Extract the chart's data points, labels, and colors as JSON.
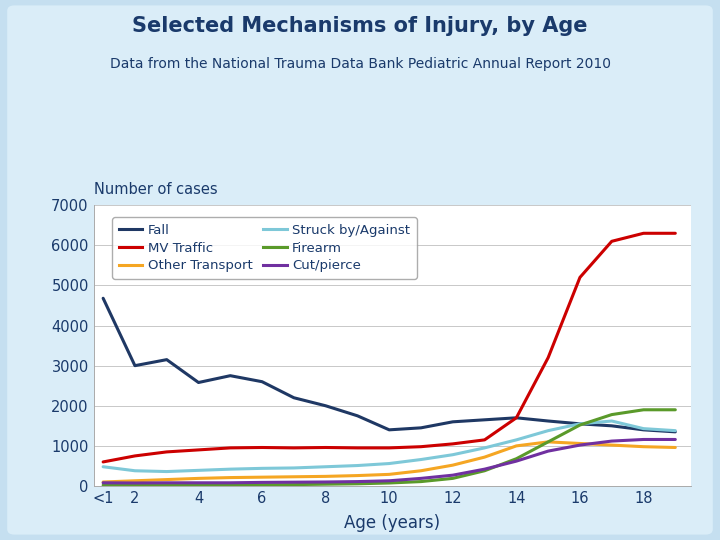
{
  "title": "Selected Mechanisms of Injury, by Age",
  "subtitle": "Data from the National Trauma Data Bank Pediatric Annual Report 2010",
  "ylabel": "Number of cases",
  "xlabel": "Age (years)",
  "outer_bg": "#c5dff0",
  "inner_bg": "#e8f4fb",
  "plot_bg": "#ffffff",
  "title_color": "#1a3a6b",
  "label_color": "#1a3a6b",
  "age_x": [
    0,
    1,
    2,
    3,
    4,
    5,
    6,
    7,
    8,
    9,
    10,
    11,
    12,
    13,
    14,
    15,
    16,
    17,
    18
  ],
  "xtick_labels": [
    "<1",
    "2",
    "4",
    "6",
    "8",
    "10",
    "12",
    "14",
    "16",
    "18"
  ],
  "xtick_positions": [
    0,
    1,
    3,
    5,
    7,
    9,
    11,
    13,
    15,
    17
  ],
  "ylim": [
    0,
    7000
  ],
  "yticks": [
    0,
    1000,
    2000,
    3000,
    4000,
    5000,
    6000,
    7000
  ],
  "series_order": [
    "Fall",
    "MV Traffic",
    "Other Transport",
    "Struck by/Against",
    "Firearm",
    "Cut/pierce"
  ],
  "legend_order": [
    "Fall",
    "MV Traffic",
    "Other Transport",
    "Struck by/Against",
    "Firearm",
    "Cut/pierce"
  ],
  "series": {
    "Fall": {
      "color": "#1f3864",
      "values": [
        4680,
        3000,
        3150,
        2580,
        2750,
        2600,
        2200,
        2000,
        1750,
        1400,
        1450,
        1600,
        1650,
        1700,
        1620,
        1550,
        1500,
        1400,
        1350
      ]
    },
    "MV Traffic": {
      "color": "#cc0000",
      "values": [
        600,
        750,
        850,
        900,
        950,
        960,
        950,
        960,
        950,
        950,
        980,
        1050,
        1150,
        1700,
        3200,
        5200,
        6100,
        6300,
        6300
      ]
    },
    "Other Transport": {
      "color": "#f5a623",
      "values": [
        100,
        130,
        160,
        190,
        210,
        220,
        230,
        240,
        260,
        290,
        380,
        520,
        720,
        1000,
        1100,
        1060,
        1020,
        980,
        960
      ]
    },
    "Struck by/Against": {
      "color": "#7ec8d8",
      "values": [
        480,
        380,
        360,
        390,
        420,
        440,
        450,
        480,
        510,
        560,
        660,
        780,
        950,
        1150,
        1380,
        1550,
        1620,
        1430,
        1380
      ]
    },
    "Firearm": {
      "color": "#5a9a2a",
      "values": [
        20,
        20,
        20,
        20,
        25,
        30,
        35,
        45,
        55,
        75,
        110,
        190,
        380,
        680,
        1100,
        1520,
        1780,
        1900,
        1900
      ]
    },
    "Cut/pierce": {
      "color": "#7030a0",
      "values": [
        80,
        75,
        80,
        80,
        80,
        90,
        95,
        100,
        110,
        130,
        190,
        270,
        420,
        620,
        870,
        1020,
        1120,
        1160,
        1160
      ]
    }
  }
}
